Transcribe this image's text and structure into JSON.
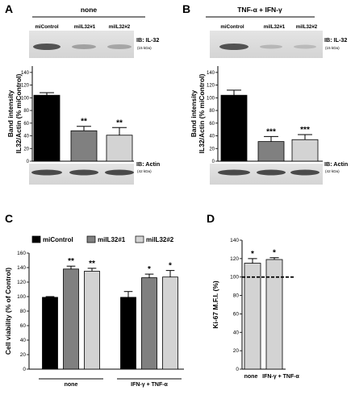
{
  "panels": {
    "A": {
      "letter": "A",
      "condition": "none"
    },
    "B": {
      "letter": "B",
      "condition": "TNF-α + IFN-γ"
    },
    "C": {
      "letter": "C"
    },
    "D": {
      "letter": "D"
    }
  },
  "blots": {
    "lanes": [
      "miControl",
      "miIL32#1",
      "miIL32#2"
    ],
    "il32_label": "IB: IL-32",
    "il32_kda": "(15 kDa)",
    "actin_label": "IB: Actin",
    "actin_kda": "(42 kDa)"
  },
  "colors": {
    "miControl": "#000000",
    "miIL32#1": "#808080",
    "miIL32#2": "#d3d3d3",
    "panelD": "#d3d3d3"
  },
  "chart_data": [
    {
      "id": "A",
      "type": "bar",
      "categories": [
        "miControl",
        "miIL32#1",
        "miIL32#2"
      ],
      "values": [
        104,
        48,
        41
      ],
      "errors": [
        4,
        7,
        12
      ],
      "significance": [
        "",
        "**",
        "**"
      ],
      "ylabel": "Band intensity IL32/Actin (% miControl)",
      "ylim": [
        0,
        150
      ],
      "yticks": [
        0,
        20,
        40,
        60,
        80,
        100,
        120,
        140
      ],
      "ytick_labels": [
        "0",
        "20",
        "40",
        "60",
        "80",
        "100",
        "120",
        "140"
      ]
    },
    {
      "id": "B",
      "type": "bar",
      "categories": [
        "miControl",
        "miIL32#1",
        "miIL32#2"
      ],
      "values": [
        104,
        31,
        34
      ],
      "errors": [
        8,
        8,
        8
      ],
      "significance": [
        "",
        "***",
        "***"
      ],
      "ylabel": "Band intensity IL32/Actin (% miControl)",
      "ylim": [
        0,
        150
      ],
      "yticks": [
        0,
        20,
        40,
        60,
        80,
        100,
        120,
        140
      ],
      "ytick_labels": [
        "0",
        "20",
        "40",
        "60",
        "80",
        "100",
        "120",
        "140"
      ]
    },
    {
      "id": "C",
      "type": "bar",
      "categories": [
        "none",
        "IFN-γ + TNF-α"
      ],
      "series": [
        {
          "name": "miControl",
          "values": [
            99,
            99
          ],
          "errors": [
            1,
            8
          ],
          "significance": [
            "",
            ""
          ]
        },
        {
          "name": "miIL32#1",
          "values": [
            138,
            126
          ],
          "errors": [
            4,
            5
          ],
          "significance": [
            "**",
            "*"
          ]
        },
        {
          "name": "miIL32#2",
          "values": [
            135,
            127
          ],
          "errors": [
            4,
            9
          ],
          "significance": [
            "**",
            "*"
          ]
        }
      ],
      "ylabel": "Cell viability (% of Control)",
      "ylim": [
        0,
        160
      ],
      "yticks": [
        0,
        20,
        40,
        60,
        80,
        100,
        120,
        140,
        160
      ],
      "ytick_labels": [
        "0",
        "20",
        "40",
        "60",
        "80",
        "100",
        "120",
        "140",
        "160"
      ],
      "legend": "top"
    },
    {
      "id": "D",
      "type": "bar",
      "categories": [
        "none",
        "IFN-γ + TNF-α"
      ],
      "values": [
        115,
        119
      ],
      "errors": [
        5,
        2
      ],
      "significance": [
        "*",
        "*"
      ],
      "reference_line": 100,
      "ylabel": "Ki-67 M.F.I. (%)",
      "ylim": [
        0,
        140
      ],
      "yticks": [
        0,
        20,
        40,
        60,
        80,
        100,
        120,
        140
      ],
      "ytick_labels": [
        "0",
        "20",
        "40",
        "60",
        "80",
        "100",
        "120",
        "140"
      ]
    }
  ]
}
